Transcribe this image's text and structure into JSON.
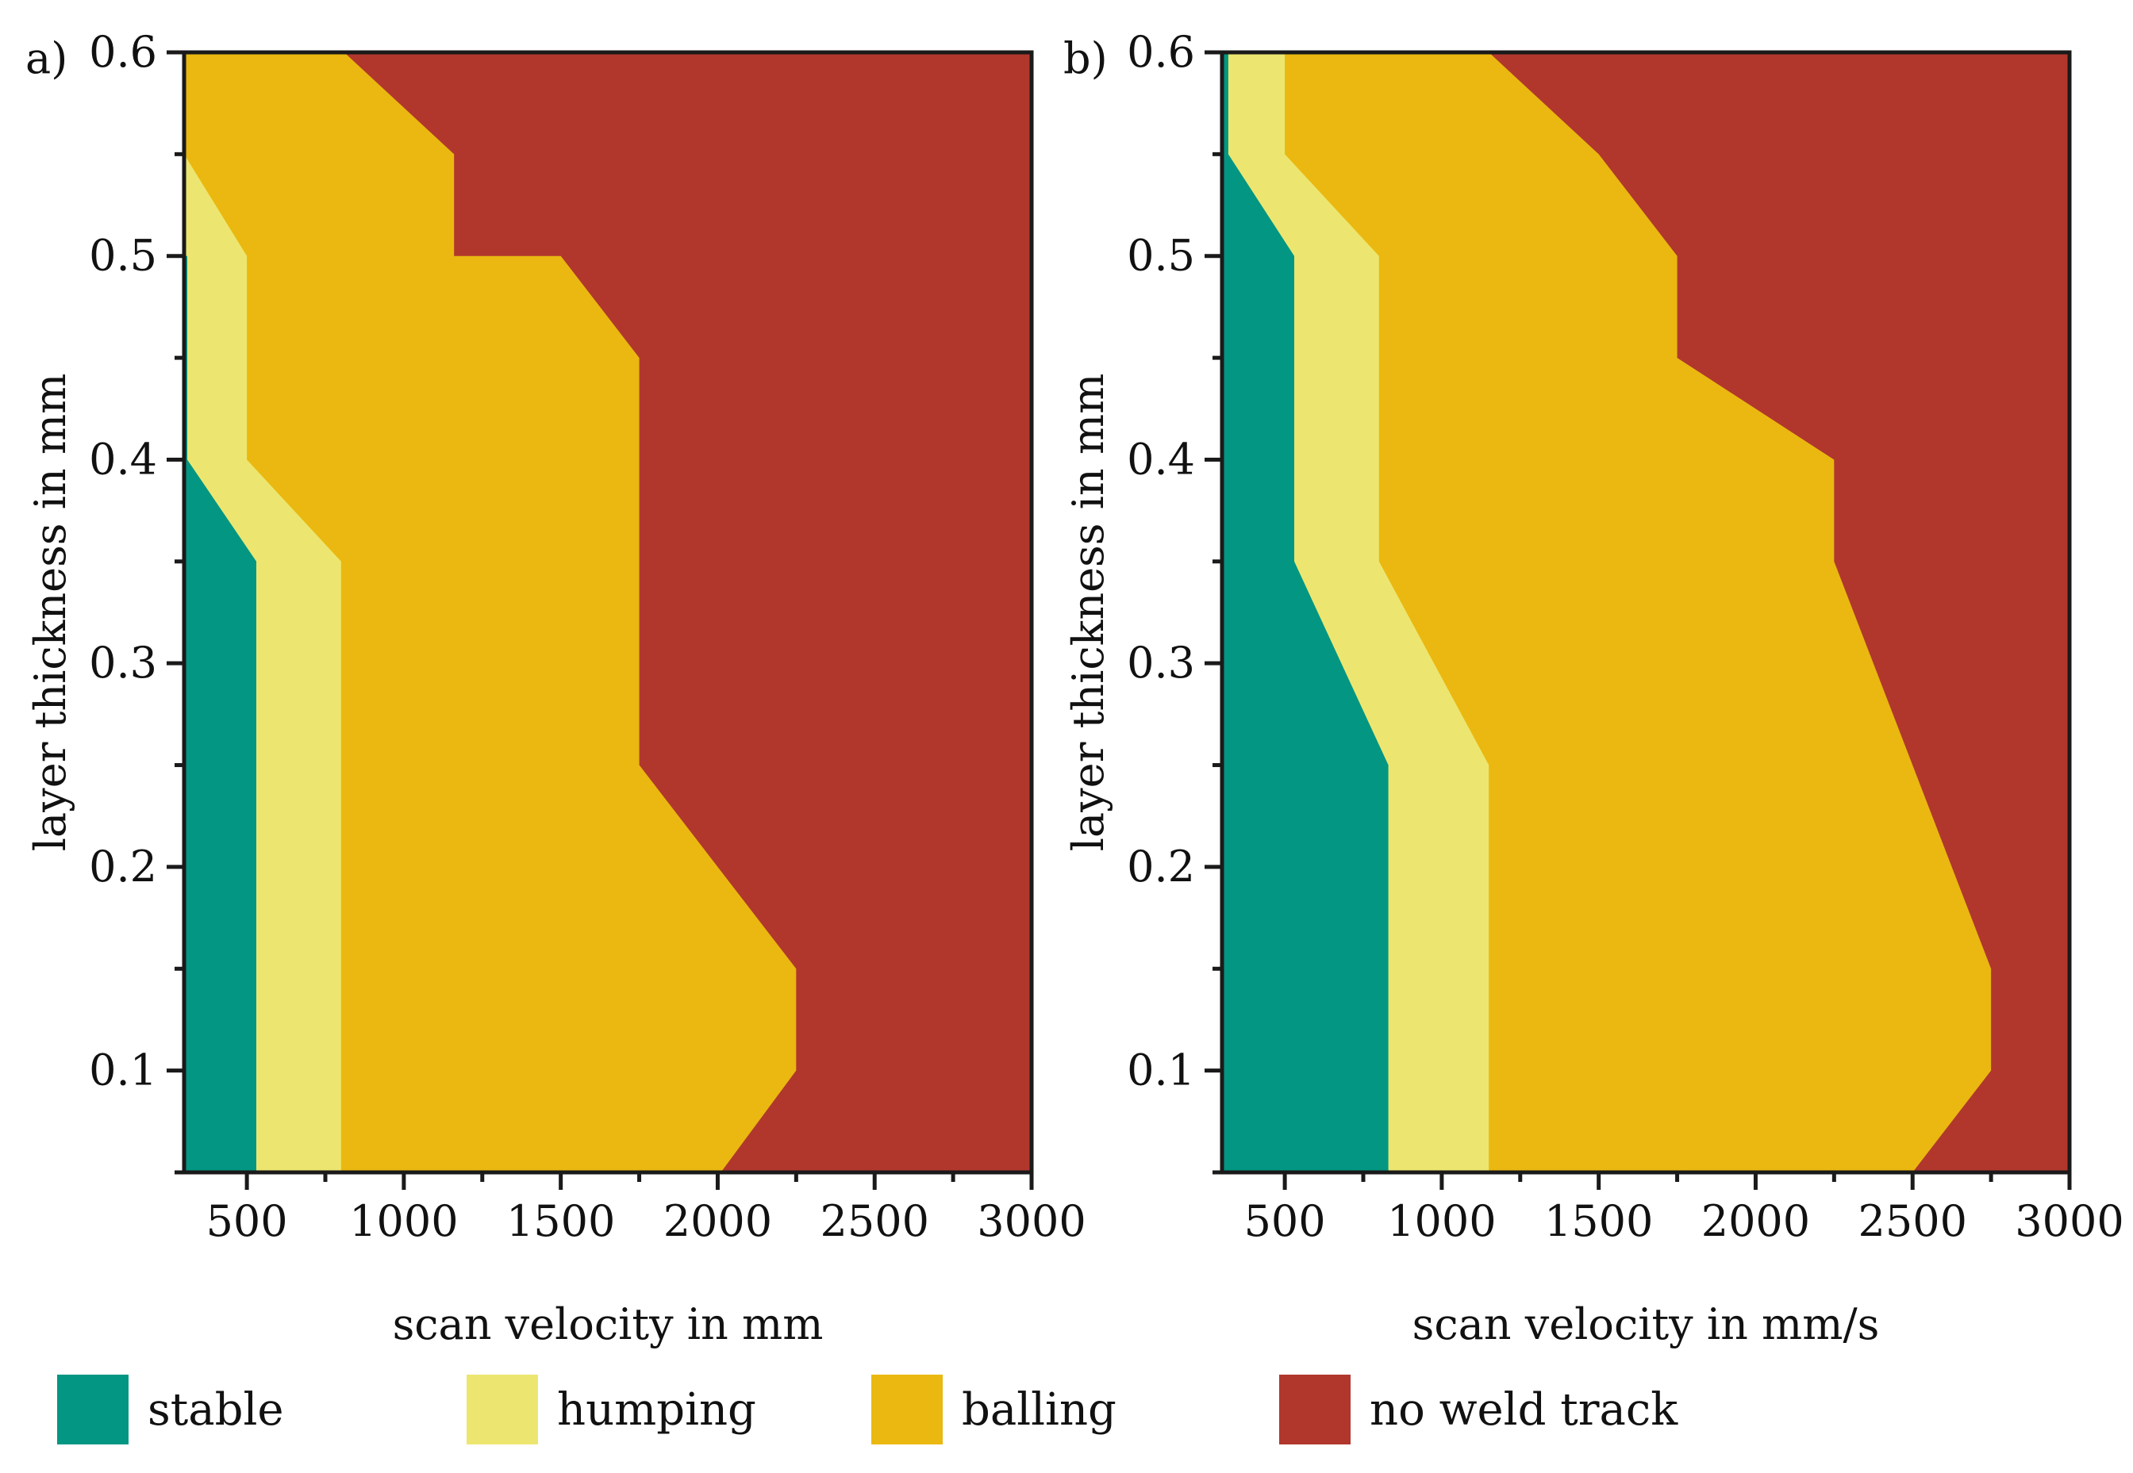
{
  "colors": {
    "stable": "#039683",
    "humping": "#ece670",
    "balling": "#eab810",
    "no_weld_track": "#b1372d"
  },
  "legend": [
    {
      "key": "stable",
      "label": "stable"
    },
    {
      "key": "humping",
      "label": "humping"
    },
    {
      "key": "balling",
      "label": "balling"
    },
    {
      "key": "no_weld_track",
      "label": "no weld track"
    }
  ],
  "chart_data": [
    {
      "type": "area",
      "panel_label": "a)",
      "xlabel": "scan velocity in mm",
      "ylabel": "layer thickness in mm",
      "xlim": [
        300,
        3000
      ],
      "ylim": [
        0.05,
        0.6
      ],
      "xticks": [
        500,
        1000,
        1500,
        2000,
        2500,
        3000
      ],
      "yticks": [
        0.1,
        0.2,
        0.3,
        0.4,
        0.5,
        0.6
      ],
      "region_boundaries": [
        {
          "name": "stable/humping",
          "points": [
            [
              530,
              0.05
            ],
            [
              530,
              0.35
            ],
            [
              310,
              0.4
            ],
            [
              310,
              0.5
            ],
            [
              300,
              0.5
            ]
          ]
        },
        {
          "name": "humping/balling",
          "points": [
            [
              800,
              0.05
            ],
            [
              800,
              0.35
            ],
            [
              500,
              0.4
            ],
            [
              500,
              0.5
            ],
            [
              300,
              0.55
            ]
          ]
        },
        {
          "name": "balling/no weld track",
          "points": [
            [
              2010,
              0.05
            ],
            [
              2250,
              0.1
            ],
            [
              2250,
              0.15
            ],
            [
              1750,
              0.25
            ],
            [
              1750,
              0.45
            ],
            [
              1500,
              0.5
            ],
            [
              1160,
              0.5
            ],
            [
              1160,
              0.55
            ],
            [
              810,
              0.6
            ]
          ]
        }
      ]
    },
    {
      "type": "area",
      "panel_label": "b)",
      "xlabel": "scan velocity in mm/s",
      "ylabel": "layer thickness in mm",
      "xlim": [
        300,
        3000
      ],
      "ylim": [
        0.05,
        0.6
      ],
      "xticks": [
        500,
        1000,
        1500,
        2000,
        2500,
        3000
      ],
      "yticks": [
        0.1,
        0.2,
        0.3,
        0.4,
        0.5,
        0.6
      ],
      "region_boundaries": [
        {
          "name": "stable/humping",
          "points": [
            [
              830,
              0.05
            ],
            [
              830,
              0.25
            ],
            [
              530,
              0.35
            ],
            [
              530,
              0.5
            ],
            [
              320,
              0.55
            ],
            [
              320,
              0.6
            ]
          ]
        },
        {
          "name": "humping/balling",
          "points": [
            [
              1150,
              0.05
            ],
            [
              1150,
              0.25
            ],
            [
              800,
              0.35
            ],
            [
              800,
              0.5
            ],
            [
              500,
              0.55
            ],
            [
              500,
              0.6
            ]
          ]
        },
        {
          "name": "balling/no weld track",
          "points": [
            [
              2500,
              0.05
            ],
            [
              2750,
              0.1
            ],
            [
              2750,
              0.15
            ],
            [
              2250,
              0.35
            ],
            [
              2250,
              0.4
            ],
            [
              1750,
              0.45
            ],
            [
              1750,
              0.5
            ],
            [
              1500,
              0.55
            ],
            [
              1150,
              0.6
            ]
          ]
        }
      ]
    }
  ]
}
